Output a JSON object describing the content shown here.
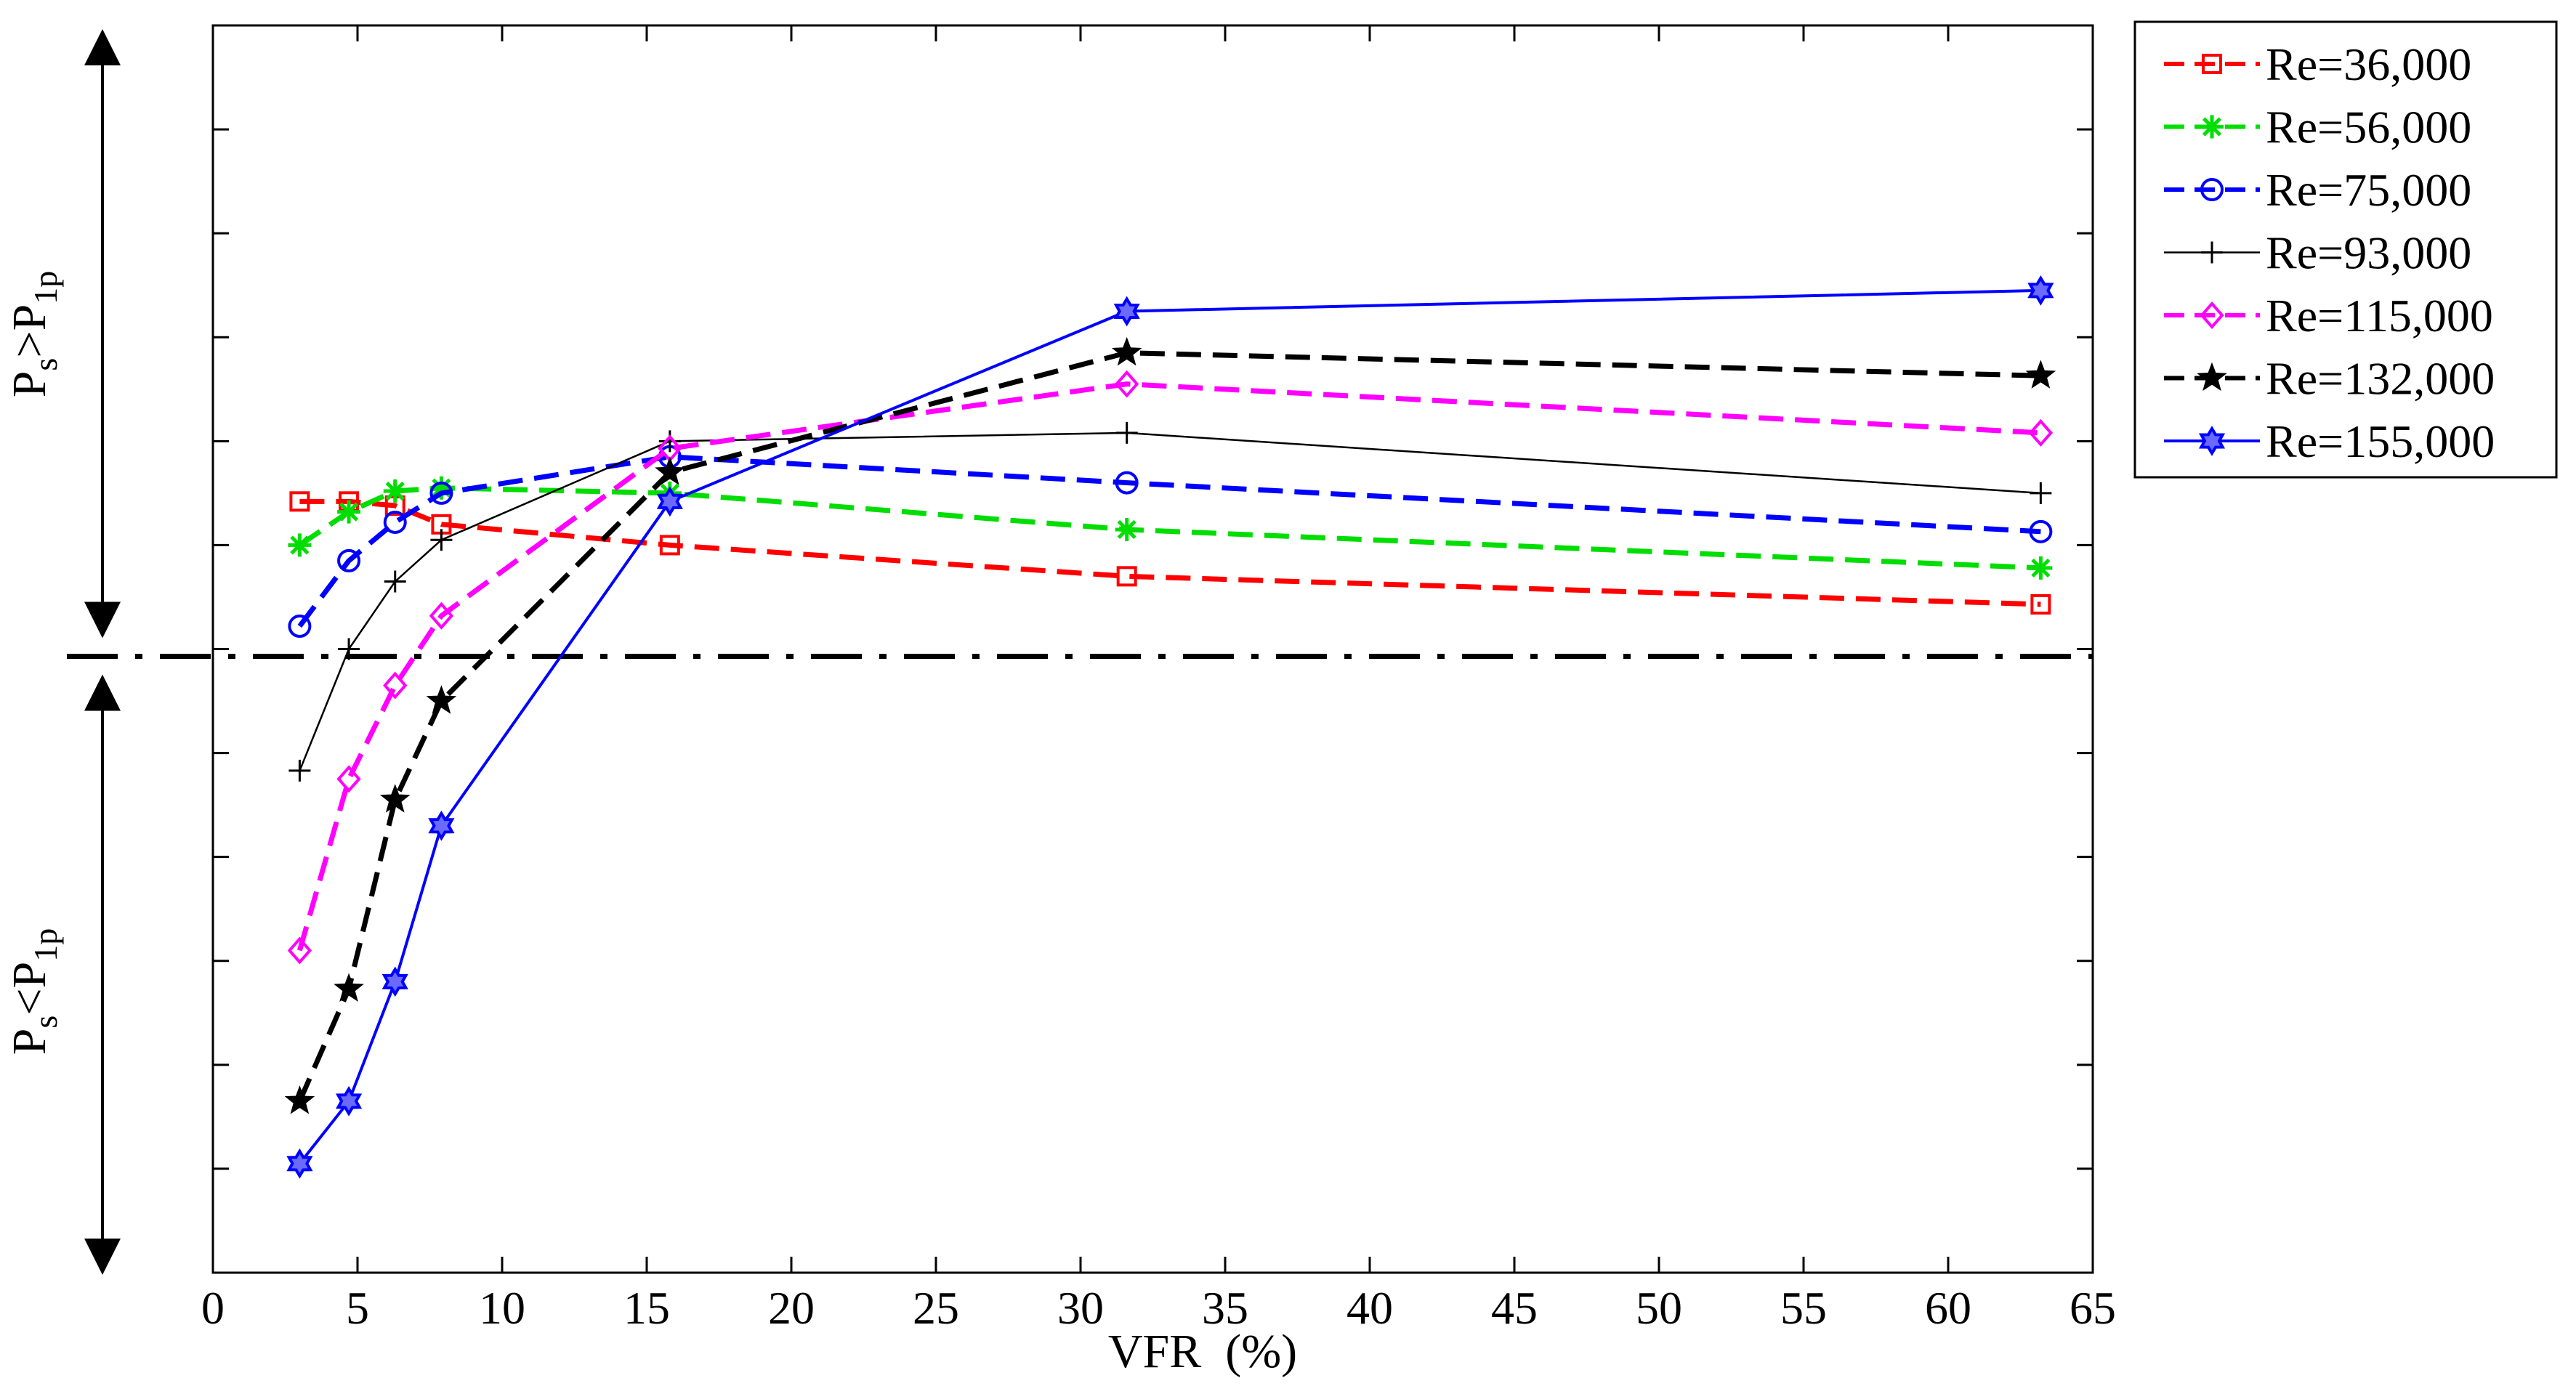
{
  "chart_data": {
    "type": "line",
    "title": "",
    "xlabel": "VFR  (%)",
    "ylabel": "",
    "xlim": [
      0,
      65
    ],
    "ylim": [
      -6,
      6
    ],
    "xticks": [
      "0",
      "5",
      "10",
      "15",
      "20",
      "25",
      "30",
      "35",
      "40",
      "45",
      "50",
      "55",
      "60",
      "65"
    ],
    "grid": false,
    "legend_position": "outside-top-right",
    "reference_line": {
      "y": -0.07,
      "style": "dash-dot"
    },
    "region_labels": {
      "upper": {
        "base": "P",
        "sub1": "s",
        "op": ">P",
        "sub2": "1p"
      },
      "lower": {
        "base": "P",
        "sub1": "s",
        "op": "<P",
        "sub2": "1p"
      }
    },
    "series": [
      {
        "name": "Re=36,000",
        "color": "#ff0000",
        "marker": "square",
        "dash": "dashed",
        "x": [
          3,
          4.7,
          6.3,
          7.9,
          15.8,
          31.6,
          63.2
        ],
        "y": [
          1.42,
          1.42,
          1.38,
          1.2,
          1.0,
          0.7,
          0.43
        ]
      },
      {
        "name": "Re=56,000",
        "color": "#00dd00",
        "marker": "asterisk",
        "dash": "dashed",
        "x": [
          3,
          4.7,
          6.3,
          7.9,
          15.8,
          31.6,
          63.2
        ],
        "y": [
          1.0,
          1.32,
          1.52,
          1.55,
          1.5,
          1.15,
          0.78
        ]
      },
      {
        "name": "Re=75,000",
        "color": "#0000ff",
        "marker": "circle",
        "dash": "dashed",
        "x": [
          3,
          4.7,
          6.3,
          7.9,
          15.8,
          31.6,
          63.2
        ],
        "y": [
          0.22,
          0.85,
          1.22,
          1.5,
          1.85,
          1.6,
          1.13
        ]
      },
      {
        "name": "Re=93,000",
        "color": "#000000",
        "marker": "plus",
        "dash": "solid-thin",
        "x": [
          3,
          4.7,
          6.3,
          7.9,
          15.8,
          31.6,
          63.2
        ],
        "y": [
          -1.17,
          0,
          0.65,
          1.05,
          2.0,
          2.08,
          1.5
        ]
      },
      {
        "name": "Re=115,000",
        "color": "#ff00ff",
        "marker": "diamond",
        "dash": "dashed",
        "x": [
          3,
          4.7,
          6.3,
          7.9,
          15.8,
          31.6,
          63.2
        ],
        "y": [
          -2.9,
          -1.25,
          -0.35,
          0.32,
          1.93,
          2.55,
          2.08
        ]
      },
      {
        "name": "Re=132,000",
        "color": "#000000",
        "marker": "star",
        "dash": "dashed",
        "x": [
          3,
          4.7,
          6.3,
          7.9,
          15.8,
          31.6,
          63.2
        ],
        "y": [
          -4.35,
          -3.27,
          -1.45,
          -0.5,
          1.7,
          2.85,
          2.63
        ]
      },
      {
        "name": "Re=155,000",
        "color": "#0000ff",
        "marker": "hexagram",
        "dash": "solid",
        "x": [
          3,
          4.7,
          6.3,
          7.9,
          15.8,
          31.6,
          63.2
        ],
        "y": [
          -4.95,
          -4.35,
          -3.2,
          -1.7,
          1.42,
          3.25,
          3.45
        ]
      }
    ]
  }
}
